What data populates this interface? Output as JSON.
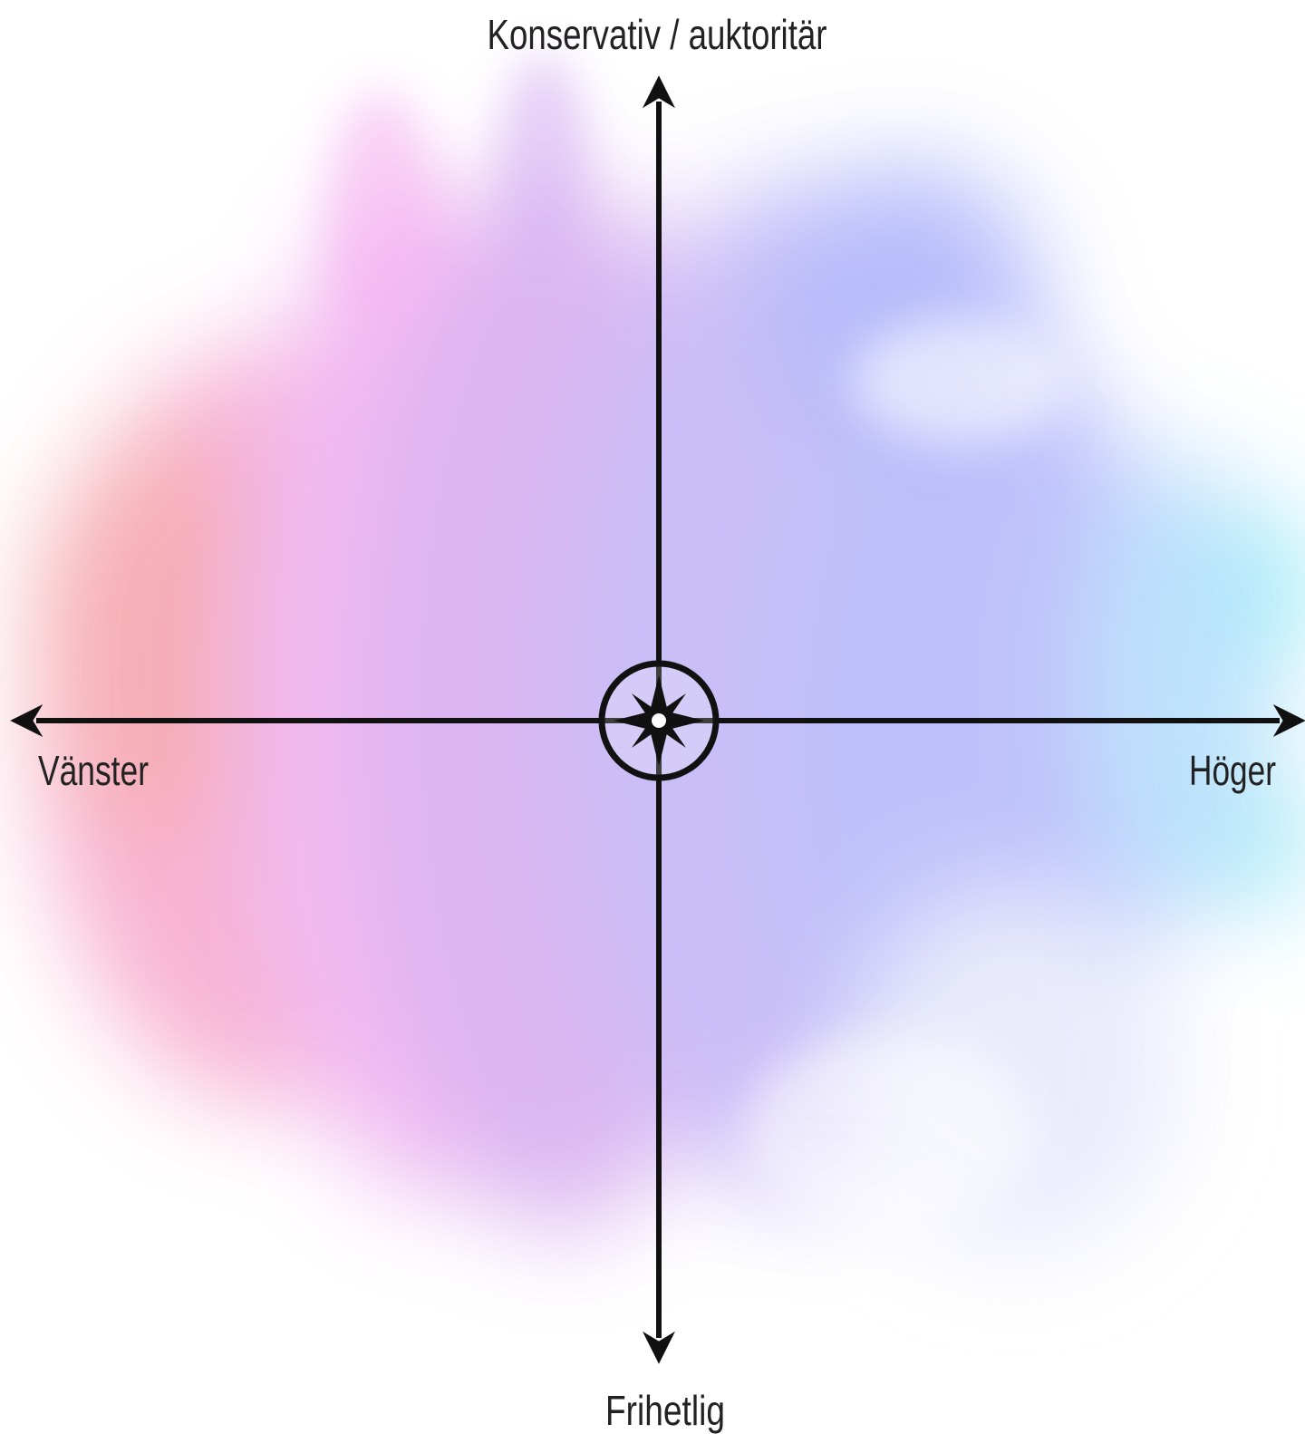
{
  "axes": {
    "top": "Konservativ / auktoritär",
    "bottom": "Frihetlig",
    "left": "Vänster",
    "right": "Höger"
  }
}
